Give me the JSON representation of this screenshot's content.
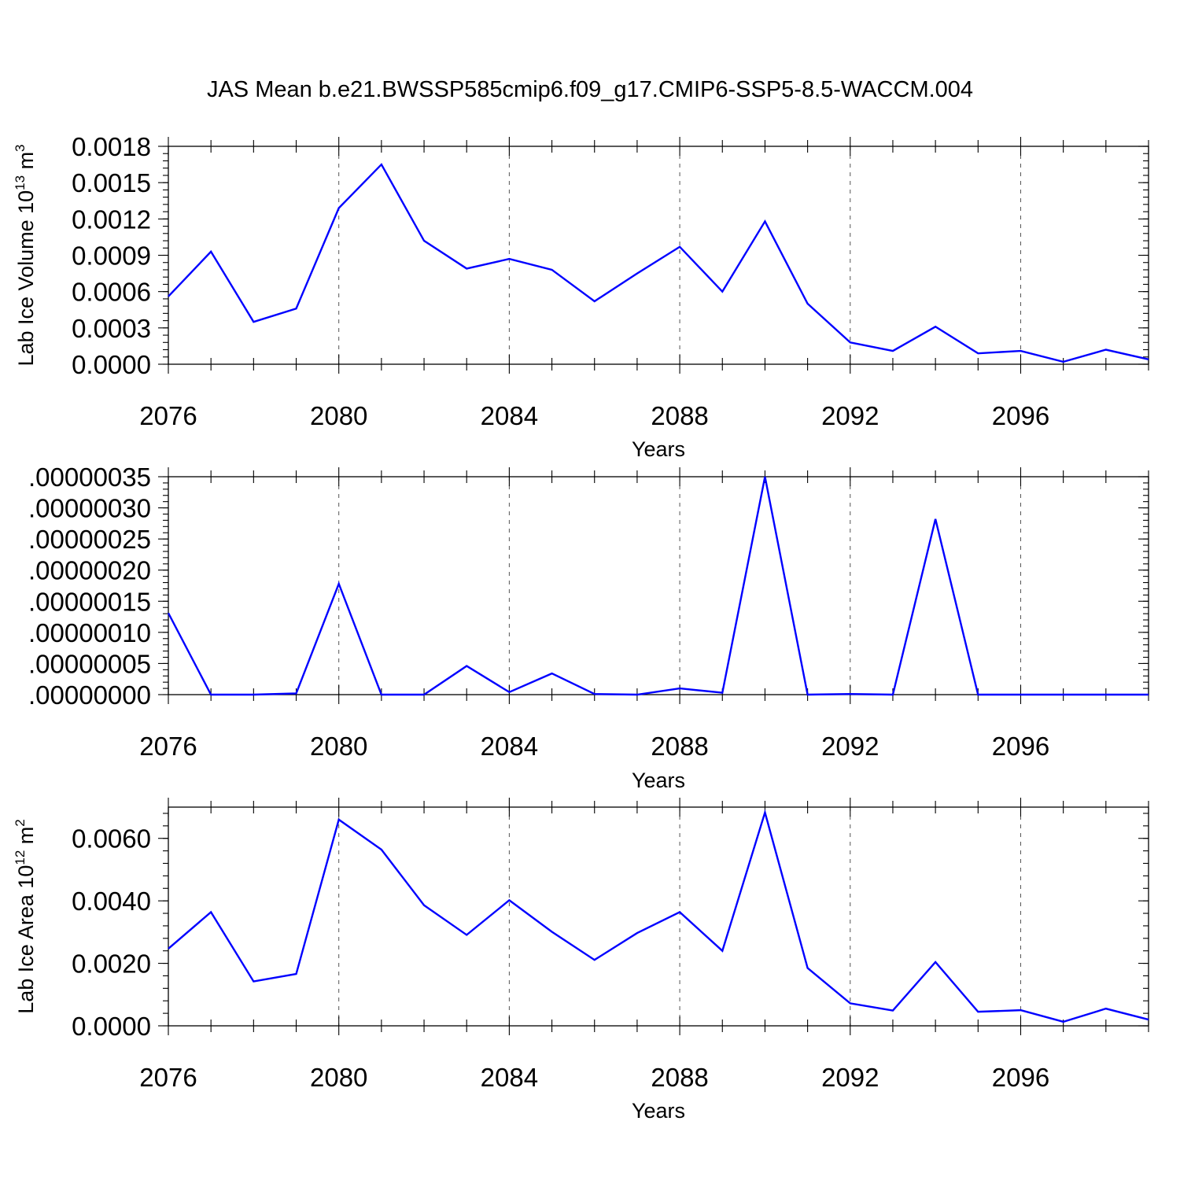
{
  "title": "JAS Mean b.e21.BWSSP585cmip6.f09_g17.CMIP6-SSP5-8.5-WACCM.004",
  "line_color": "#0000ff",
  "chart_data": [
    {
      "type": "line",
      "xlabel": "Years",
      "ylabel": "Lab Ice Volume 10",
      "ylabel_sup": "13",
      "ylabel_unit": "m",
      "ylabel_unit_sup": "3",
      "xlim": [
        2076,
        2099
      ],
      "ylim": [
        0,
        0.0018
      ],
      "x_ticks": [
        2076,
        2080,
        2084,
        2088,
        2092,
        2096
      ],
      "x_tick_labels": [
        "2076",
        "2080",
        "2084",
        "2088",
        "2092",
        "2096"
      ],
      "y_ticks": [
        0,
        0.0003,
        0.0006,
        0.0009,
        0.0012,
        0.0015,
        0.0018
      ],
      "y_tick_labels": [
        "0.0000",
        "0.0003",
        "0.0006",
        "0.0009",
        "0.0012",
        "0.0015",
        "0.0018"
      ],
      "grid": "vertical dashed at major x ticks",
      "series": [
        {
          "x": [
            2076,
            2077,
            2078,
            2079,
            2080,
            2081,
            2082,
            2083,
            2084,
            2085,
            2086,
            2087,
            2088,
            2089,
            2090,
            2091,
            2092,
            2093,
            2094,
            2095,
            2096,
            2097,
            2098,
            2099
          ],
          "values": [
            0.00056,
            0.00093,
            0.00035,
            0.00046,
            0.00129,
            0.00165,
            0.00102,
            0.00079,
            0.00087,
            0.00078,
            0.00052,
            0.00075,
            0.00097,
            0.0006,
            0.00118,
            0.0005,
            0.00018,
            0.00011,
            0.00031,
            9e-05,
            0.00011,
            2e-05,
            0.00012,
            4e-05
          ]
        }
      ]
    },
    {
      "type": "line",
      "xlabel": "Years",
      "ylabel": "",
      "xlim": [
        2076,
        2099
      ],
      "ylim": [
        0,
        3.5e-07
      ],
      "x_ticks": [
        2076,
        2080,
        2084,
        2088,
        2092,
        2096
      ],
      "x_tick_labels": [
        "2076",
        "2080",
        "2084",
        "2088",
        "2092",
        "2096"
      ],
      "y_ticks": [
        0,
        5e-08,
        1e-07,
        1.5e-07,
        2e-07,
        2.5e-07,
        3e-07,
        3.5e-07
      ],
      "y_tick_labels": [
        ".00000000",
        ".00000005",
        ".00000010",
        ".00000015",
        ".00000020",
        ".00000025",
        ".00000030",
        ".00000035"
      ],
      "grid": "vertical dashed at major x ticks",
      "series": [
        {
          "x": [
            2076,
            2077,
            2078,
            2079,
            2080,
            2081,
            2082,
            2083,
            2084,
            2085,
            2086,
            2087,
            2088,
            2089,
            2090,
            2091,
            2092,
            2093,
            2094,
            2095,
            2096,
            2097,
            2098,
            2099
          ],
          "values": [
            1.31e-07,
            0.0,
            0.0,
            2e-09,
            1.78e-07,
            0.0,
            0.0,
            4.6e-08,
            4e-09,
            3.4e-08,
            1e-09,
            0.0,
            1e-08,
            3e-09,
            3.5e-07,
            0.0,
            1e-09,
            0.0,
            2.82e-07,
            0.0,
            0.0,
            0.0,
            0.0,
            0.0
          ]
        }
      ]
    },
    {
      "type": "line",
      "xlabel": "Years",
      "ylabel": "Lab Ice Area 10",
      "ylabel_sup": "12",
      "ylabel_unit": "m",
      "ylabel_unit_sup": "2",
      "xlim": [
        2076,
        2099
      ],
      "ylim": [
        0,
        0.007
      ],
      "x_ticks": [
        2076,
        2080,
        2084,
        2088,
        2092,
        2096
      ],
      "x_tick_labels": [
        "2076",
        "2080",
        "2084",
        "2088",
        "2092",
        "2096"
      ],
      "y_ticks": [
        0,
        0.002,
        0.004,
        0.006
      ],
      "y_tick_labels": [
        "0.0000",
        "0.0020",
        "0.0040",
        "0.0060"
      ],
      "grid": "vertical dashed at major x ticks",
      "series": [
        {
          "x": [
            2076,
            2077,
            2078,
            2079,
            2080,
            2081,
            2082,
            2083,
            2084,
            2085,
            2086,
            2087,
            2088,
            2089,
            2090,
            2091,
            2092,
            2093,
            2094,
            2095,
            2096,
            2097,
            2098,
            2099
          ],
          "values": [
            0.00247,
            0.00364,
            0.00142,
            0.00166,
            0.0066,
            0.00564,
            0.00386,
            0.00291,
            0.00402,
            0.00301,
            0.00211,
            0.00297,
            0.00364,
            0.0024,
            0.00683,
            0.00185,
            0.00072,
            0.00049,
            0.00204,
            0.00045,
            0.0005,
            0.00013,
            0.00055,
            0.0002
          ]
        }
      ]
    }
  ]
}
